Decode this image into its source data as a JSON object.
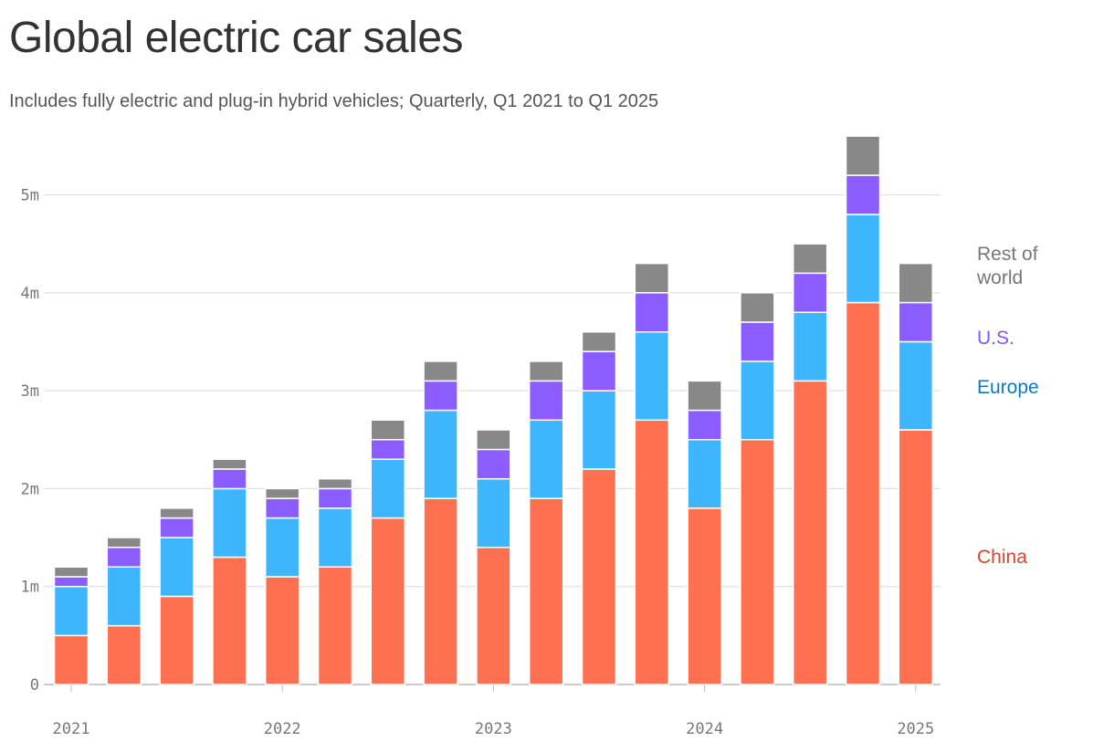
{
  "title": "Global electric car sales",
  "subtitle": "Includes fully electric and plug-in hybrid vehicles; Quarterly, Q1 2021 to Q1 2025",
  "chart_data": {
    "type": "bar",
    "stacked": true,
    "title": "Global electric car sales",
    "subtitle": "Includes fully electric and plug-in hybrid vehicles; Quarterly, Q1 2021 to Q1 2025",
    "categories": [
      "Q1 2021",
      "Q2 2021",
      "Q3 2021",
      "Q4 2021",
      "Q1 2022",
      "Q2 2022",
      "Q3 2022",
      "Q4 2022",
      "Q1 2023",
      "Q2 2023",
      "Q3 2023",
      "Q4 2023",
      "Q1 2024",
      "Q2 2024",
      "Q3 2024",
      "Q4 2024",
      "Q1 2025"
    ],
    "x_tick_labels": [
      "2021",
      "2022",
      "2023",
      "2024",
      "2025"
    ],
    "y_tick_labels": [
      "0",
      "1m",
      "2m",
      "3m",
      "4m",
      "5m"
    ],
    "ylim": [
      0,
      5.6
    ],
    "y_unit": "millions",
    "grid": true,
    "legend": "right, inline labels",
    "series": [
      {
        "name": "China",
        "color": "#ff7050",
        "label_color": "#d9442b",
        "values": [
          0.5,
          0.6,
          0.9,
          1.3,
          1.1,
          1.2,
          1.7,
          1.9,
          1.4,
          1.9,
          2.2,
          2.7,
          1.8,
          2.5,
          3.1,
          3.9,
          2.6
        ]
      },
      {
        "name": "Europe",
        "color": "#3db5ff",
        "label_color": "#0b7bc0",
        "values": [
          0.5,
          0.6,
          0.6,
          0.7,
          0.6,
          0.6,
          0.6,
          0.9,
          0.7,
          0.8,
          0.8,
          0.9,
          0.7,
          0.8,
          0.7,
          0.9,
          0.9
        ]
      },
      {
        "name": "U.S.",
        "color": "#8b5cff",
        "label_color": "#7e57ff",
        "values": [
          0.1,
          0.2,
          0.2,
          0.2,
          0.2,
          0.2,
          0.2,
          0.3,
          0.3,
          0.4,
          0.4,
          0.4,
          0.3,
          0.4,
          0.4,
          0.4,
          0.4
        ]
      },
      {
        "name": "Rest of world",
        "color": "#888888",
        "label_color": "#777777",
        "values": [
          0.1,
          0.1,
          0.1,
          0.1,
          0.1,
          0.1,
          0.2,
          0.2,
          0.2,
          0.2,
          0.2,
          0.3,
          0.3,
          0.3,
          0.3,
          0.4,
          0.4
        ]
      }
    ]
  }
}
